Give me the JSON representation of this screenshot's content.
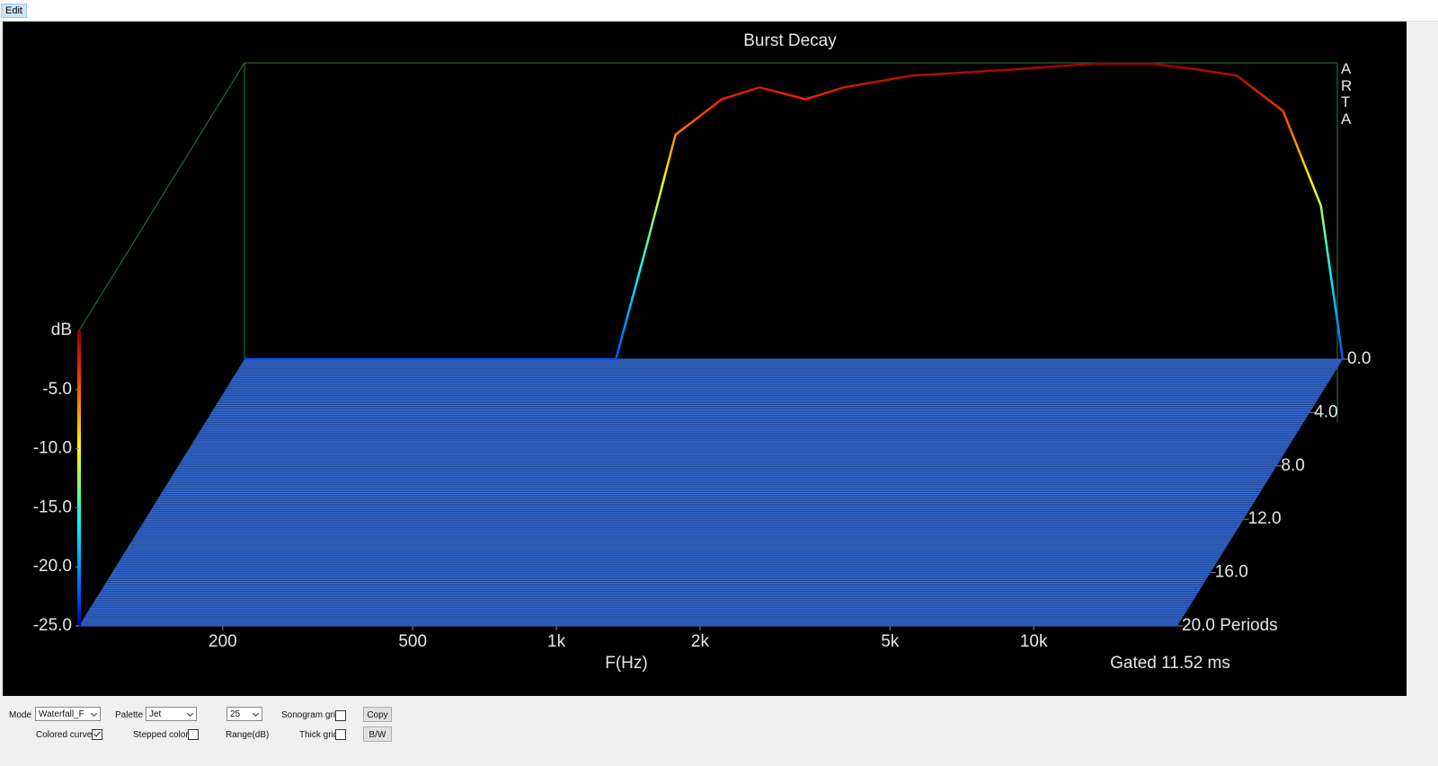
{
  "menu": [
    "Edit"
  ],
  "chart_data": {
    "type": "waterfall",
    "title": "Burst Decay",
    "logo": "ARTA",
    "x_label": "F(Hz)",
    "y_label": "dB",
    "footer": "Gated 11.52 ms",
    "x": [
      100,
      200,
      400,
      600,
      700,
      800,
      1000,
      1200,
      1500,
      1800,
      2500,
      4000,
      6000,
      8000,
      10000,
      12000,
      15000,
      18000,
      20000
    ],
    "values": [
      -25,
      -25,
      -25,
      -25,
      -15,
      -6,
      -3,
      -2,
      -3,
      -2,
      -1,
      -0.5,
      0,
      0,
      -0.5,
      -1,
      -4,
      -12,
      -25
    ],
    "xscale": "log",
    "xlim": [
      100,
      20000
    ],
    "xticks": [
      200,
      500,
      {
        "value": 1000,
        "label": "1k"
      },
      {
        "value": 2000,
        "label": "2k"
      },
      {
        "value": 5000,
        "label": "5k"
      },
      {
        "value": 10000,
        "label": "10k"
      }
    ],
    "ylim": [
      -25,
      0
    ],
    "yticks": [
      {
        "value": -5,
        "label": "-5.0"
      },
      {
        "value": -10,
        "label": "-10.0"
      },
      {
        "value": -15,
        "label": "-15.0"
      },
      {
        "value": -20,
        "label": "-20.0"
      },
      {
        "value": -25,
        "label": "-25.0"
      }
    ],
    "zlim": [
      0,
      20
    ],
    "zticks": [
      {
        "value": 0,
        "label": "0.0"
      },
      {
        "value": 4,
        "label": "4.0"
      },
      {
        "value": 8,
        "label": "8.0"
      },
      {
        "value": 12,
        "label": "12.0"
      },
      {
        "value": 16,
        "label": "16.0"
      },
      {
        "value": 20,
        "label": "20.0 Periods"
      }
    ],
    "palette": "jet"
  },
  "controls": {
    "mode": {
      "label": "Mode",
      "value": "Waterfall_F"
    },
    "palette": {
      "label": "Palette",
      "value": "Jet"
    },
    "range": {
      "value": "25",
      "label": "Range(dB)"
    },
    "sonogram_grid": {
      "label": "Sonogram grid",
      "checked": false
    },
    "colored_curves": {
      "label": "Colored curves",
      "checked": true
    },
    "stepped_colors": {
      "label": "Stepped colors",
      "checked": false
    },
    "thick_grid": {
      "label": "Thick grid",
      "checked": false
    },
    "copy": "Copy",
    "bw": "B/W"
  }
}
